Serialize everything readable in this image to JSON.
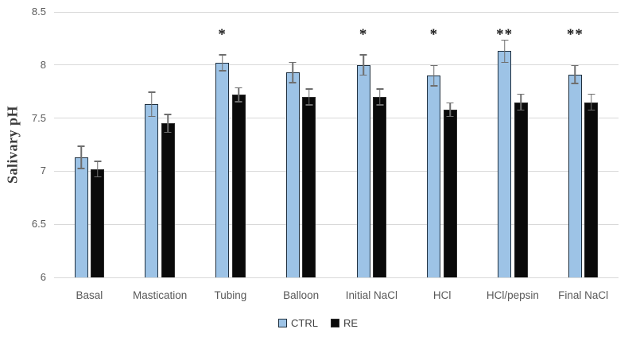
{
  "chart_data": {
    "type": "bar",
    "title": "",
    "xlabel": "",
    "ylabel": "Salivary pH",
    "ylim": [
      6,
      8.5
    ],
    "yticks": [
      6,
      6.5,
      7,
      7.5,
      8,
      8.5
    ],
    "grid": "horizontal",
    "legend_position": "bottom",
    "categories": [
      "Basal",
      "Mastication",
      "Tubing",
      "Balloon",
      "Initial NaCl",
      "HCl",
      "HCl/pepsin",
      "Final NaCl"
    ],
    "series": [
      {
        "name": "CTRL",
        "fill": "#9dc3e6",
        "border": "#20303f",
        "values": [
          7.13,
          7.63,
          8.02,
          7.93,
          8.0,
          7.9,
          8.13,
          7.91
        ],
        "errors": [
          0.11,
          0.12,
          0.08,
          0.1,
          0.1,
          0.1,
          0.11,
          0.09
        ]
      },
      {
        "name": "RE",
        "fill": "#0a0a0a",
        "border": "#2b2b2b",
        "values": [
          7.02,
          7.45,
          7.72,
          7.7,
          7.7,
          7.58,
          7.65,
          7.65
        ],
        "errors": [
          0.08,
          0.09,
          0.07,
          0.08,
          0.08,
          0.07,
          0.08,
          0.08
        ]
      }
    ],
    "significance": [
      "",
      "",
      "*",
      "",
      "*",
      "*",
      "**",
      "**"
    ],
    "colors": {
      "gridline": "#d9d9d9",
      "tick_label": "#595959",
      "category_label": "#595959",
      "error_bar": "#6e6e6e",
      "axis_title": "#3b3b3b",
      "legend_text": "#404040",
      "significance": "#1a1a1a",
      "background": "#ffffff"
    }
  }
}
